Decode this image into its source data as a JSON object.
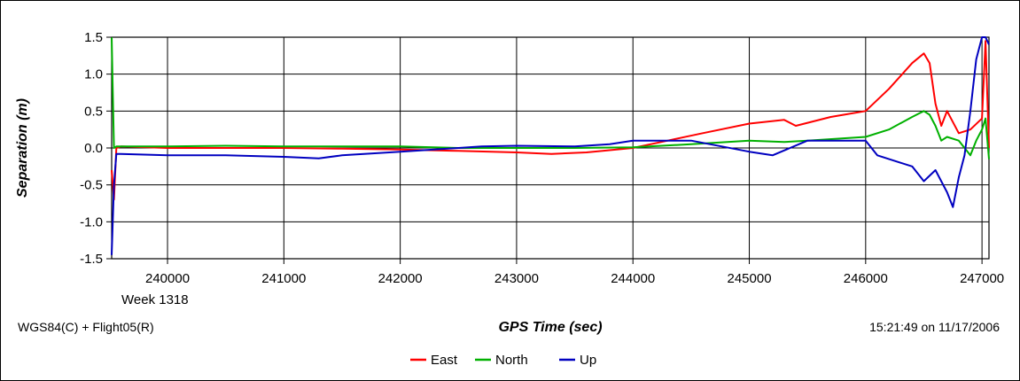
{
  "chart_data": {
    "type": "line",
    "title": "",
    "xlabel": "GPS Time (sec)",
    "ylabel": "Separation (m)",
    "xlim": [
      239520,
      247060
    ],
    "ylim": [
      -1.5,
      1.5
    ],
    "x_ticks": [
      240000,
      241000,
      242000,
      243000,
      244000,
      245000,
      246000,
      247000
    ],
    "y_ticks": [
      1.5,
      1.0,
      0.5,
      0.0,
      -0.5,
      -1.0,
      -1.5
    ],
    "x_tick_labels": [
      "240000",
      "241000",
      "242000",
      "243000",
      "244000",
      "245000",
      "246000",
      "247000"
    ],
    "y_tick_labels": [
      "1.5",
      "1.0",
      "0.5",
      "0.0",
      "-0.5",
      "-1.0",
      "-1.5"
    ],
    "grid": true,
    "legend_position": "bottom-center",
    "series": [
      {
        "name": "East",
        "color": "#ff0000",
        "x": [
          239520,
          239540,
          239560,
          239600,
          240000,
          240500,
          241000,
          241500,
          242000,
          242500,
          243000,
          243300,
          243600,
          244000,
          244300,
          244600,
          245000,
          245300,
          245400,
          245700,
          246000,
          246200,
          246400,
          246500,
          246550,
          246600,
          246650,
          246700,
          246750,
          246800,
          246900,
          247000,
          247030,
          247060
        ],
        "y": [
          -0.3,
          -0.7,
          0.0,
          0.02,
          0.0,
          0.0,
          0.0,
          -0.01,
          -0.02,
          -0.04,
          -0.06,
          -0.08,
          -0.06,
          0.0,
          0.1,
          0.2,
          0.33,
          0.38,
          0.3,
          0.42,
          0.5,
          0.8,
          1.15,
          1.28,
          1.15,
          0.6,
          0.3,
          0.5,
          0.35,
          0.2,
          0.25,
          0.4,
          1.45,
          0.0
        ]
      },
      {
        "name": "North",
        "color": "#00b000",
        "x": [
          239520,
          239540,
          239560,
          239600,
          240000,
          240500,
          241000,
          241500,
          242000,
          242500,
          243000,
          243500,
          244000,
          244500,
          245000,
          245300,
          245500,
          246000,
          246200,
          246400,
          246500,
          246550,
          246600,
          246650,
          246700,
          246800,
          246900,
          246950,
          247000,
          247030,
          247060
        ],
        "y": [
          1.5,
          0.0,
          0.02,
          0.02,
          0.02,
          0.03,
          0.02,
          0.02,
          0.02,
          0.0,
          0.0,
          0.0,
          0.01,
          0.05,
          0.1,
          0.08,
          0.1,
          0.15,
          0.25,
          0.42,
          0.5,
          0.45,
          0.3,
          0.1,
          0.15,
          0.1,
          -0.1,
          0.1,
          0.25,
          0.4,
          -0.15
        ]
      },
      {
        "name": "Up",
        "color": "#0000c0",
        "x": [
          239520,
          239540,
          239560,
          239600,
          240000,
          240500,
          241000,
          241300,
          241500,
          242000,
          242500,
          242700,
          243000,
          243500,
          243800,
          244000,
          244500,
          245000,
          245200,
          245500,
          246000,
          246100,
          246300,
          246400,
          246500,
          246600,
          246700,
          246750,
          246800,
          246850,
          246900,
          246950,
          247000,
          247030,
          247060
        ],
        "y": [
          -1.45,
          -0.5,
          -0.08,
          -0.08,
          -0.1,
          -0.1,
          -0.12,
          -0.14,
          -0.1,
          -0.05,
          0.0,
          0.02,
          0.03,
          0.02,
          0.05,
          0.1,
          0.1,
          -0.05,
          -0.1,
          0.1,
          0.1,
          -0.1,
          -0.2,
          -0.25,
          -0.45,
          -0.3,
          -0.6,
          -0.8,
          -0.4,
          -0.1,
          0.5,
          1.2,
          1.5,
          1.5,
          1.4
        ]
      }
    ]
  },
  "footer": {
    "week_label": "Week 1318",
    "datum_label": "WGS84(C) + Flight05(R)",
    "timestamp": "15:21:49 on 11/17/2006"
  }
}
